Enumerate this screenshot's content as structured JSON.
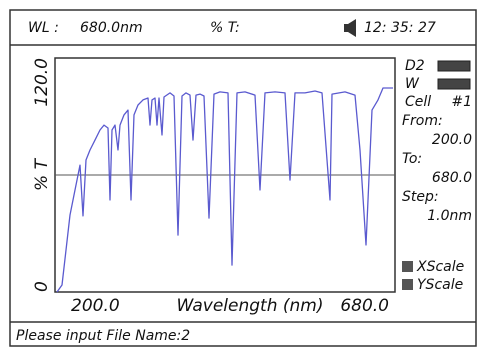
{
  "header": {
    "wl_label": "WL :",
    "wl_value": "680.0nm",
    "t_label": "% T:",
    "time": "12: 35: 27"
  },
  "sidebar": {
    "d2": "D2",
    "w": "W",
    "cell": "Cell",
    "cell_no": "#1",
    "from_label": "From:",
    "from_value": "200.0",
    "to_label": "To:",
    "to_value": "680.0",
    "step_label": "Step:",
    "step_value": "1.0nm",
    "xscale": "XScale",
    "yscale": "YScale"
  },
  "status": "Please input File Name:2",
  "chart_data": {
    "type": "line",
    "xlabel": "Wavelength (nm)",
    "ylabel": "% T",
    "color": "#5a5acf",
    "x": [
      200,
      207.1,
      212.9,
      218.6,
      225.7,
      232.9,
      237.1,
      241.4,
      247.1,
      254.3,
      261.4,
      267.1,
      272.9,
      275.7,
      278.6,
      282.9,
      287.1,
      290,
      295.7,
      301.4,
      305.7,
      310,
      315.7,
      322.9,
      330,
      332.9,
      335.7,
      340,
      342.9,
      345.7,
      350,
      352.9,
      361.4,
      367.1,
      372.9,
      378.6,
      384.3,
      390,
      394.3,
      398.6,
      404.3,
      410,
      417.1,
      424.3,
      432.9,
      444.3,
      450,
      457.1,
      468.6,
      482.9,
      490,
      497.1,
      511.4,
      525.7,
      532.9,
      540,
      554.3,
      568.6,
      578.6,
      590,
      592.9,
      611.4,
      625.7,
      632.9,
      641.4,
      650,
      658.6,
      665.7,
      680
    ],
    "values": [
      0,
      3.6,
      21.5,
      39.5,
      52.3,
      65.1,
      39,
      67.7,
      72.8,
      77.9,
      83.1,
      85.6,
      84.1,
      47.2,
      83.1,
      85.6,
      72.8,
      85.6,
      90.8,
      93.3,
      47.2,
      90.8,
      95.9,
      98.5,
      99.5,
      85.6,
      98.5,
      99.5,
      85.6,
      99.5,
      80.5,
      100,
      102.1,
      100.5,
      29.2,
      100.5,
      102.1,
      101,
      77.9,
      101,
      101.5,
      100.5,
      37.9,
      101.5,
      102.6,
      102.1,
      13.8,
      102.1,
      102.6,
      101,
      52.3,
      102.1,
      102.6,
      102.1,
      57.4,
      102.1,
      102.1,
      103.1,
      102.1,
      47.2,
      101.5,
      102.6,
      101,
      72.8,
      24.1,
      93.3,
      98.5,
      104.6,
      104.6
    ],
    "xlim": [
      200,
      680
    ],
    "ylim": [
      0,
      120
    ],
    "xticks": [
      {
        "value": 200,
        "label": "200.0"
      },
      {
        "value": 680,
        "label": "680.0"
      }
    ],
    "yticks": [
      0,
      {
        "value": 120,
        "label": "120.0"
      }
    ],
    "hline": 60
  }
}
